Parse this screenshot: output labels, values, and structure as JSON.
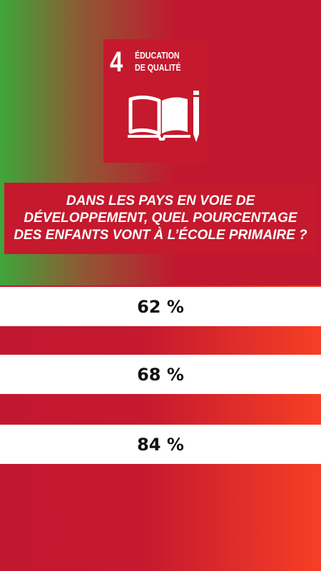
{
  "sdg": {
    "number": "4",
    "title_line1": "ÉDUCATION",
    "title_line2": "DE QUALITÉ",
    "icon": "open-book-pencil-icon",
    "color": "#c5192d"
  },
  "question": {
    "text": "DANS LES PAYS EN VOIE DE DÉVELOPPEMENT, QUEL POURCENTAGE DES ENFANTS VONT À L’ÉCOLE PRIMAIRE ?"
  },
  "answers": [
    {
      "label": "62 %"
    },
    {
      "label": "68 %"
    },
    {
      "label": "84 %"
    }
  ],
  "colors": {
    "green": "#3ea63a",
    "red": "#c2182f",
    "orange": "#f63f25",
    "answer_background": "#ffffff"
  }
}
